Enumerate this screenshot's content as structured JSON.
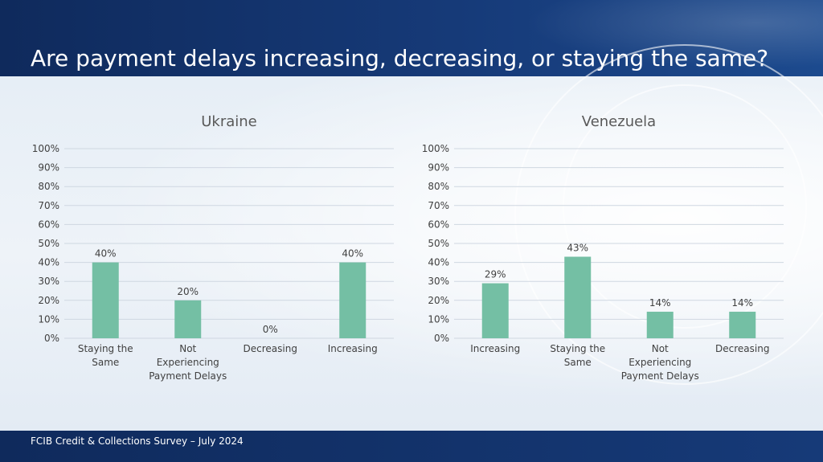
{
  "page": {
    "title": "Are payment delays increasing, decreasing, or staying the same?",
    "footer": "FCIB Credit & Collections Survey – July 2024"
  },
  "colors": {
    "bar": "#74bfa4",
    "header": "#163a78",
    "gridline": "#cfd7e1",
    "text": "#404040"
  },
  "chart_data": [
    {
      "type": "bar",
      "title": "Ukraine",
      "categories": [
        "Staying the Same",
        "Not Experiencing Payment Delays",
        "Decreasing",
        "Increasing"
      ],
      "category_lines": [
        [
          "Staying the",
          "Same"
        ],
        [
          "Not",
          "Experiencing",
          "Payment Delays"
        ],
        [
          "Decreasing"
        ],
        [
          "Increasing"
        ]
      ],
      "values": [
        40,
        20,
        0,
        40
      ],
      "value_labels": [
        "40%",
        "20%",
        "0%",
        "40%"
      ],
      "ylim": [
        0,
        100
      ],
      "yticks": [
        "0%",
        "10%",
        "20%",
        "30%",
        "40%",
        "50%",
        "60%",
        "70%",
        "80%",
        "90%",
        "100%"
      ],
      "grid": true
    },
    {
      "type": "bar",
      "title": "Venezuela",
      "categories": [
        "Increasing",
        "Staying the Same",
        "Not Experiencing Payment Delays",
        "Decreasing"
      ],
      "category_lines": [
        [
          "Increasing"
        ],
        [
          "Staying the",
          "Same"
        ],
        [
          "Not",
          "Experiencing",
          "Payment Delays"
        ],
        [
          "Decreasing"
        ]
      ],
      "values": [
        29,
        43,
        14,
        14
      ],
      "value_labels": [
        "29%",
        "43%",
        "14%",
        "14%"
      ],
      "ylim": [
        0,
        100
      ],
      "yticks": [
        "0%",
        "10%",
        "20%",
        "30%",
        "40%",
        "50%",
        "60%",
        "70%",
        "80%",
        "90%",
        "100%"
      ],
      "grid": true
    }
  ]
}
